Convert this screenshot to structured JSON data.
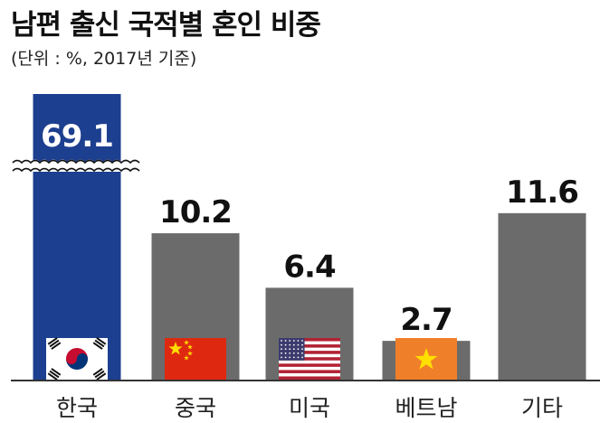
{
  "title": "남편 출신 국적별 혼인 비중",
  "subtitle": "(단위 : %, 2017년 기준)",
  "colors": {
    "highlight": "#1d3f8f",
    "bar": "#6b6b6b",
    "axis": "#333333"
  },
  "chart_data": {
    "type": "bar",
    "title": "남편 출신 국적별 혼인 비중",
    "subtitle": "(단위 : %, 2017년 기준)",
    "categories": [
      "한국",
      "중국",
      "미국",
      "베트남",
      "기타"
    ],
    "values": [
      69.1,
      10.2,
      6.4,
      2.7,
      11.6
    ],
    "value_labels": [
      "69.1",
      "10.2",
      "6.4",
      "2.7",
      "11.6"
    ],
    "flags": [
      "korea-flag",
      "china-flag",
      "usa-flag",
      "vietnam-flag",
      null
    ],
    "highlight_index": 0,
    "broken_axis_on": [
      0
    ],
    "ylim": [
      0,
      16
    ],
    "grid": false,
    "xlabel": "",
    "ylabel": ""
  }
}
